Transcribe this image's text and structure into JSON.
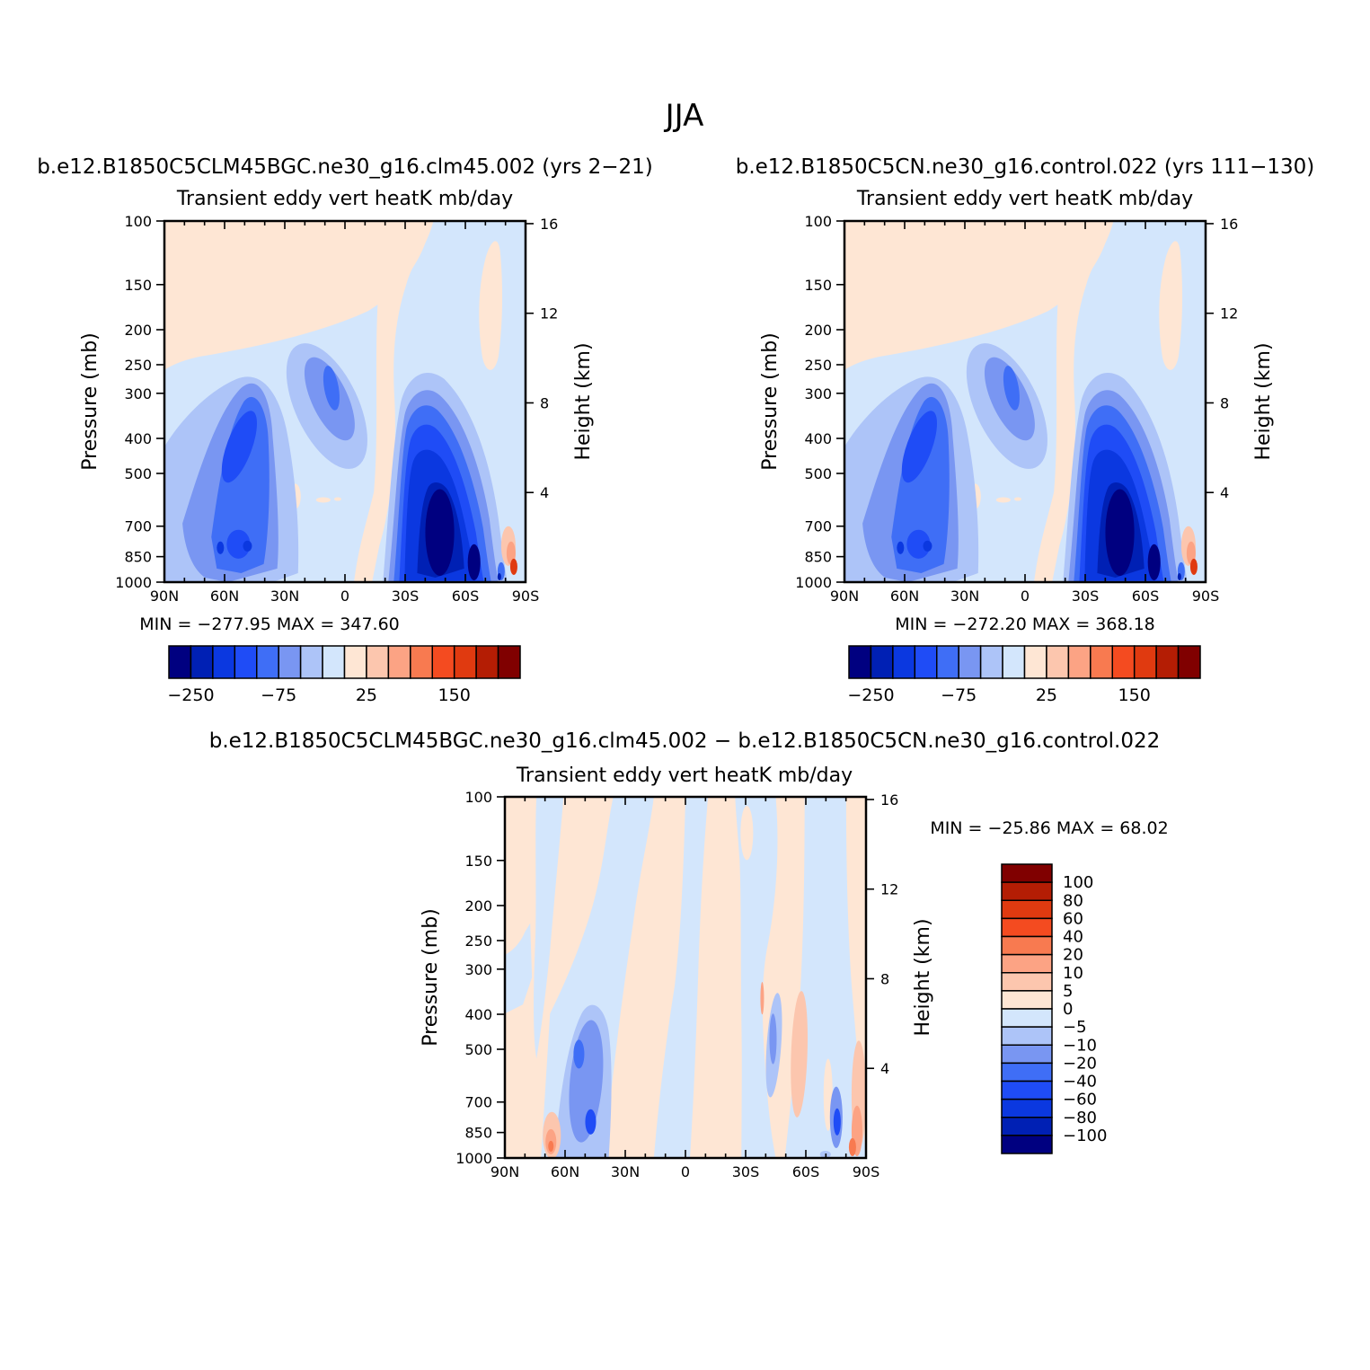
{
  "figure": {
    "title": "JJA"
  },
  "colors": {
    "b12": "#000080",
    "b11": "#0020b4",
    "b10": "#0b38e0",
    "b9": "#1f4cf6",
    "b8": "#3f6ef6",
    "b7": "#7996f2",
    "b6": "#adc4f8",
    "b5": "#d3e6fc",
    "r1": "#fee6d4",
    "r2": "#fcc6ae",
    "r3": "#fca384",
    "r4": "#f87a50",
    "r5": "#f44b20",
    "r6": "#e03a10",
    "r7": "#b41d04",
    "r8": "#800000"
  },
  "chart_data": [
    {
      "type": "contour",
      "model": "b.e12.B1850C5CLM45BGC.ne30_g16.clm45.002 (yrs 2−21)",
      "title": "Transient eddy vert heatK mb/day",
      "xlabel": "",
      "ylabel": "Pressure (mb)",
      "y2label": "Height (km)",
      "xticks": [
        "90N",
        "60N",
        "30N",
        "0",
        "30S",
        "60S",
        "90S"
      ],
      "yticks": [
        100,
        150,
        200,
        250,
        300,
        400,
        500,
        700,
        850,
        1000
      ],
      "y2ticks": [
        16,
        12,
        8,
        4
      ],
      "ylim": [
        1000,
        100
      ],
      "y_scale": "log",
      "stats": "MIN = −277.95   MAX = 347.60",
      "min": -277.95,
      "max": 347.6,
      "colorbar_labels": [
        "−250",
        "−75",
        "25",
        "150"
      ]
    },
    {
      "type": "contour",
      "model": "b.e12.B1850C5CN.ne30_g16.control.022 (yrs 111−130)",
      "title": "Transient eddy vert heatK mb/day",
      "xlabel": "",
      "ylabel": "Pressure (mb)",
      "y2label": "Height (km)",
      "xticks": [
        "90N",
        "60N",
        "30N",
        "0",
        "30S",
        "60S",
        "90S"
      ],
      "yticks": [
        100,
        150,
        200,
        250,
        300,
        400,
        500,
        700,
        850,
        1000
      ],
      "y2ticks": [
        16,
        12,
        8,
        4
      ],
      "ylim": [
        1000,
        100
      ],
      "y_scale": "log",
      "stats": "MIN = −272.20   MAX = 368.18",
      "min": -272.2,
      "max": 368.18,
      "colorbar_labels": [
        "−250",
        "−75",
        "25",
        "150"
      ]
    },
    {
      "type": "contour",
      "model": "b.e12.B1850C5CLM45BGC.ne30_g16.clm45.002 − b.e12.B1850C5CN.ne30_g16.control.022",
      "title": "Transient eddy vert heatK mb/day",
      "xlabel": "",
      "ylabel": "Pressure (mb)",
      "y2label": "Height (km)",
      "xticks": [
        "90N",
        "60N",
        "30N",
        "0",
        "30S",
        "60S",
        "90S"
      ],
      "yticks": [
        100,
        150,
        200,
        250,
        300,
        400,
        500,
        700,
        850,
        1000
      ],
      "y2ticks": [
        16,
        12,
        8,
        4
      ],
      "ylim": [
        1000,
        100
      ],
      "y_scale": "log",
      "stats": "MIN = −25.86   MAX =   68.02",
      "min": -25.86,
      "max": 68.02,
      "colorbar_labels": [
        "100",
        "80",
        "60",
        "40",
        "20",
        "10",
        "5",
        "0",
        "−5",
        "−10",
        "−20",
        "−40",
        "−60",
        "−80",
        "−100"
      ]
    }
  ]
}
